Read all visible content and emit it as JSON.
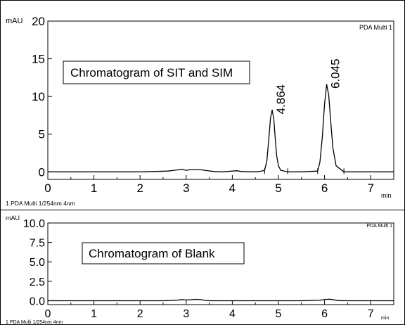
{
  "chart_data": [
    {
      "type": "line",
      "y_unit": "mAU",
      "x_unit": "min",
      "detector_label": "PDA Multi 1",
      "footer": "1  PDA Multi 1/254nm 4nm",
      "title": "Chromatogram of SIT and SIM",
      "xlim": [
        0,
        7.5
      ],
      "ylim": [
        -1,
        20
      ],
      "xticks": [
        0,
        1,
        2,
        3,
        4,
        5,
        6,
        7
      ],
      "yticks": [
        0,
        5,
        10,
        15,
        20
      ],
      "peak_labels": [
        {
          "text": "4.864",
          "x": 4.864,
          "y": 8.2
        },
        {
          "text": "6.045",
          "x": 6.045,
          "y": 11.6
        }
      ],
      "integration_marks": [
        4.7,
        5.2,
        5.85,
        6.42
      ],
      "series": [
        {
          "x": [
            0,
            0.5,
            1.0,
            1.5,
            2.0,
            2.3,
            2.6,
            2.8,
            2.9,
            3.0,
            3.1,
            3.2,
            3.3,
            3.4,
            3.6,
            3.8,
            4.0,
            4.1,
            4.2,
            4.4,
            4.6,
            4.7,
            4.75,
            4.8,
            4.83,
            4.864,
            4.9,
            4.93,
            4.96,
            5.0,
            5.05,
            5.2,
            5.5,
            5.85,
            5.9,
            5.95,
            6.0,
            6.045,
            6.09,
            6.13,
            6.18,
            6.25,
            6.42,
            6.7,
            7.0,
            7.5
          ],
          "y": [
            0,
            0,
            0,
            0,
            0,
            0.05,
            0.1,
            0.25,
            0.35,
            0.2,
            0.3,
            0.3,
            0.3,
            0.2,
            0.05,
            0,
            0.1,
            0.15,
            0.05,
            0,
            0.05,
            0.2,
            1.5,
            5.0,
            7.2,
            8.2,
            7.0,
            4.5,
            2.2,
            0.8,
            0.2,
            0,
            0,
            0.1,
            1.3,
            4.5,
            9.0,
            11.6,
            10.2,
            7.0,
            3.2,
            0.8,
            0,
            0,
            0,
            0
          ]
        }
      ]
    },
    {
      "type": "line",
      "y_unit": "mAU",
      "x_unit": "min",
      "detector_label": "PDA Multi 1",
      "footer": "1  PDA Multi 1/254nm 4nm",
      "title": "Chromatogram of Blank",
      "xlim": [
        0,
        7.5
      ],
      "ylim": [
        -0.5,
        10
      ],
      "xticks": [
        0,
        1,
        2,
        3,
        4,
        5,
        6,
        7
      ],
      "yticks": [
        "0.0",
        "2.5",
        "5.0",
        "7.5",
        "10.0"
      ],
      "series": [
        {
          "x": [
            0,
            0.5,
            1.0,
            1.5,
            2.0,
            2.5,
            2.8,
            2.9,
            3.0,
            3.1,
            3.2,
            3.3,
            3.4,
            3.5,
            3.8,
            4.2,
            4.6,
            5.0,
            5.5,
            5.9,
            6.0,
            6.1,
            6.2,
            6.3,
            6.5,
            7.0,
            7.5
          ],
          "y": [
            0,
            0,
            0,
            0,
            0,
            0,
            0.05,
            0.15,
            0.1,
            0.12,
            0.18,
            0.15,
            0.05,
            0,
            0,
            0,
            0,
            0,
            0,
            0.05,
            0.15,
            0.2,
            0.12,
            0.02,
            0,
            0,
            0
          ]
        }
      ]
    }
  ]
}
